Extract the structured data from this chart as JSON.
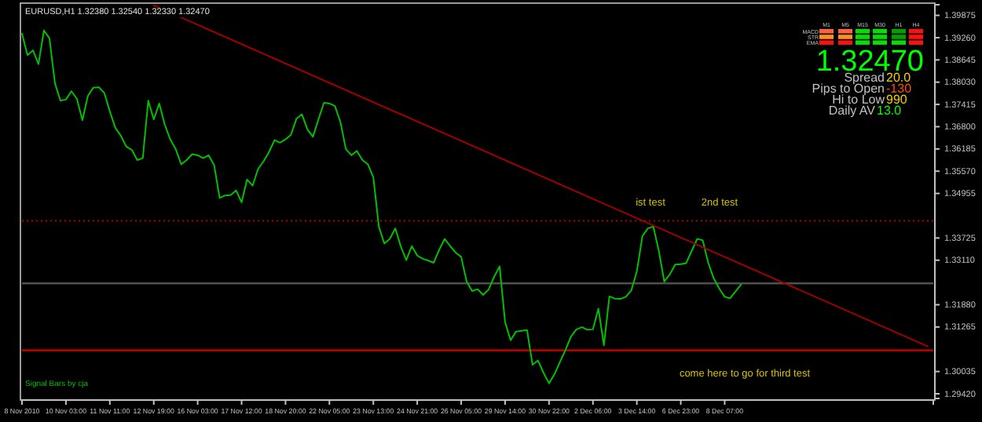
{
  "chart_data": {
    "type": "line",
    "title": "EURUSD,H1  1.32380 1.32540 1.32330 1.32470",
    "categories": [
      "8 Nov 2010",
      null,
      null,
      null,
      null,
      null,
      null,
      null,
      "10 Nov 03:00",
      null,
      null,
      null,
      null,
      null,
      null,
      null,
      "11 Nov 11:00",
      null,
      null,
      null,
      null,
      null,
      null,
      null,
      "12 Nov 19:00",
      null,
      null,
      null,
      null,
      null,
      null,
      null,
      "16 Nov 03:00",
      null,
      null,
      null,
      null,
      null,
      null,
      null,
      "17 Nov 12:00",
      null,
      null,
      null,
      null,
      null,
      null,
      null,
      "18 Nov 20:00",
      null,
      null,
      null,
      null,
      null,
      null,
      null,
      "22 Nov 05:00",
      null,
      null,
      null,
      null,
      null,
      null,
      null,
      "23 Nov 13:00",
      null,
      null,
      null,
      null,
      null,
      null,
      null,
      "24 Nov 21:00",
      null,
      null,
      null,
      null,
      null,
      null,
      null,
      "26 Nov 05:00",
      null,
      null,
      null,
      null,
      null,
      null,
      null,
      "29 Nov 14:00",
      null,
      null,
      null,
      null,
      null,
      null,
      null,
      "30 Nov 22:00",
      null,
      null,
      null,
      null,
      null,
      null,
      null,
      "2 Dec 06:00",
      null,
      null,
      null,
      null,
      null,
      null,
      null,
      "3 Dec 14:00",
      null,
      null,
      null,
      null,
      null,
      null,
      null,
      "6 Dec 23:00",
      null,
      null,
      null,
      null,
      null,
      null,
      null,
      "8 Dec 07:00",
      null,
      null,
      null,
      null,
      null,
      null,
      null,
      null,
      null,
      null,
      null,
      null,
      null,
      null,
      null,
      null,
      null,
      null,
      null,
      null,
      null,
      null,
      null,
      null,
      null,
      null,
      null,
      null,
      null,
      null,
      null,
      null,
      null,
      null,
      null,
      null,
      null,
      null
    ],
    "ylim": [
      1.2929,
      1.4017
    ],
    "yticks": [
      {
        "value": 1.39875,
        "label": "1.39875"
      },
      {
        "value": 1.3926,
        "label": "1.39260"
      },
      {
        "value": 1.38645,
        "label": "1.38645"
      },
      {
        "value": 1.3803,
        "label": "1.38030"
      },
      {
        "value": 1.37415,
        "label": "1.37415"
      },
      {
        "value": 1.368,
        "label": "1.36800"
      },
      {
        "value": 1.36185,
        "label": "1.36185"
      },
      {
        "value": 1.3557,
        "label": "1.35570"
      },
      {
        "value": 1.34955,
        "label": "1.34955"
      },
      {
        "value": 1.33725,
        "label": "1.33725"
      },
      {
        "value": 1.3311,
        "label": "1.33110"
      },
      {
        "value": 1.3188,
        "label": "1.31880"
      },
      {
        "value": 1.31265,
        "label": "1.31265"
      },
      {
        "value": 1.30035,
        "label": "1.30035"
      },
      {
        "value": 1.2942,
        "label": "1.29420"
      }
    ],
    "grid": false,
    "series": [
      {
        "color": "#00c000",
        "values": [
          1.3937,
          1.3878,
          1.3891,
          1.3853,
          1.3946,
          1.3924,
          1.38,
          1.3752,
          1.3755,
          1.3778,
          1.3757,
          1.3698,
          1.3765,
          1.3788,
          1.3789,
          1.3773,
          1.3722,
          1.3677,
          1.3655,
          1.3625,
          1.3616,
          1.3588,
          1.3593,
          1.3752,
          1.37,
          1.3744,
          1.3686,
          1.3645,
          1.3618,
          1.3576,
          1.3588,
          1.3604,
          1.3601,
          1.3593,
          1.3601,
          1.3574,
          1.3483,
          1.349,
          1.3491,
          1.3504,
          1.3471,
          1.3534,
          1.3517,
          1.3563,
          1.3584,
          1.361,
          1.3643,
          1.3636,
          1.3645,
          1.3658,
          1.3702,
          1.3714,
          1.3672,
          1.3652,
          1.37,
          1.3746,
          1.3744,
          1.3737,
          1.3693,
          1.3618,
          1.3601,
          1.3613,
          1.3588,
          1.3576,
          1.354,
          1.3404,
          1.3357,
          1.337,
          1.3399,
          1.3349,
          1.3311,
          1.335,
          1.3324,
          1.3315,
          1.331,
          1.3304,
          1.334,
          1.337,
          1.335,
          1.3332,
          1.332,
          1.3252,
          1.3226,
          1.3231,
          1.3215,
          1.323,
          1.3265,
          1.3294,
          1.314,
          1.309,
          1.3114,
          1.3116,
          1.3118,
          1.3022,
          1.3034,
          1.3,
          1.2971,
          1.2996,
          1.303,
          1.3063,
          1.31,
          1.312,
          1.3126,
          1.3119,
          1.312,
          1.3177,
          1.3076,
          1.3211,
          1.3205,
          1.3204,
          1.321,
          1.3228,
          1.328,
          1.3377,
          1.3399,
          1.3404,
          1.3337,
          1.3252,
          1.3272,
          1.3299,
          1.33,
          1.3303,
          1.3337,
          1.337,
          1.3366,
          1.3304,
          1.3261,
          1.3233,
          1.321,
          1.3206,
          1.3225,
          1.3244,
          null,
          null,
          null,
          null,
          null,
          null,
          null,
          null,
          null,
          null,
          null,
          null,
          null,
          null,
          null,
          null,
          null,
          null,
          null,
          null,
          null,
          null,
          null,
          null,
          null,
          null,
          null,
          null,
          null,
          null,
          null,
          null,
          null,
          null,
          null
        ]
      },
      {
        "color": "#a00000",
        "values": [
          null,
          null,
          null,
          null,
          null,
          null,
          null,
          null,
          null,
          null,
          null,
          null,
          null,
          null,
          null,
          null,
          null,
          null,
          null,
          null,
          null,
          null,
          null,
          null,
          1.4015,
          null,
          null,
          null,
          null,
          null,
          null,
          null,
          null,
          null,
          null,
          null,
          null,
          null,
          null,
          null,
          null,
          null,
          null,
          null,
          null,
          null,
          null,
          null,
          null,
          null,
          null,
          null,
          null,
          null,
          null,
          null,
          null,
          null,
          null,
          null,
          null,
          null,
          null,
          null,
          null,
          null,
          null,
          null,
          null,
          null,
          null,
          null,
          null,
          null,
          null,
          null,
          null,
          null,
          null,
          null,
          null,
          null,
          null,
          null,
          null,
          null,
          null,
          null,
          null,
          null,
          null,
          null,
          null,
          null,
          null,
          null,
          null,
          null,
          null,
          null,
          null,
          null,
          null,
          null,
          null,
          null,
          null,
          null,
          null,
          null,
          null,
          null,
          null,
          null,
          null,
          null,
          null,
          null,
          null,
          null,
          null,
          null,
          null,
          null,
          null,
          null,
          null,
          null,
          null,
          null,
          null,
          null,
          null,
          null,
          null,
          null,
          null,
          null,
          null,
          null,
          null,
          null,
          null,
          null,
          null,
          null,
          null,
          null,
          null,
          null,
          null,
          null,
          null,
          null,
          null,
          null,
          null,
          null,
          null,
          null,
          null,
          null,
          null,
          null,
          null,
          1.3073,
          null
        ]
      }
    ],
    "ref_lines": [
      {
        "axis": "y",
        "value": 1.342,
        "color": "#b00000",
        "line_style": "dotted"
      },
      {
        "axis": "y",
        "value": 1.3247,
        "color": "#505050",
        "line_style": "solid"
      },
      {
        "axis": "y",
        "value": 1.3062,
        "color": "#b00000",
        "line_style": "solid"
      }
    ],
    "annotations": [
      "ist test",
      "2nd test",
      "come here to go for third test",
      "M1",
      "M5",
      "M15",
      "M30",
      "H1",
      "H4",
      "MACD",
      "STR",
      "EMA",
      "1.32470",
      "Spread",
      "20.0",
      "Pips to Open",
      "-130",
      "Hi to Low",
      "990",
      "Daily AV",
      "13.0",
      "Signal Bars by cja"
    ]
  }
}
